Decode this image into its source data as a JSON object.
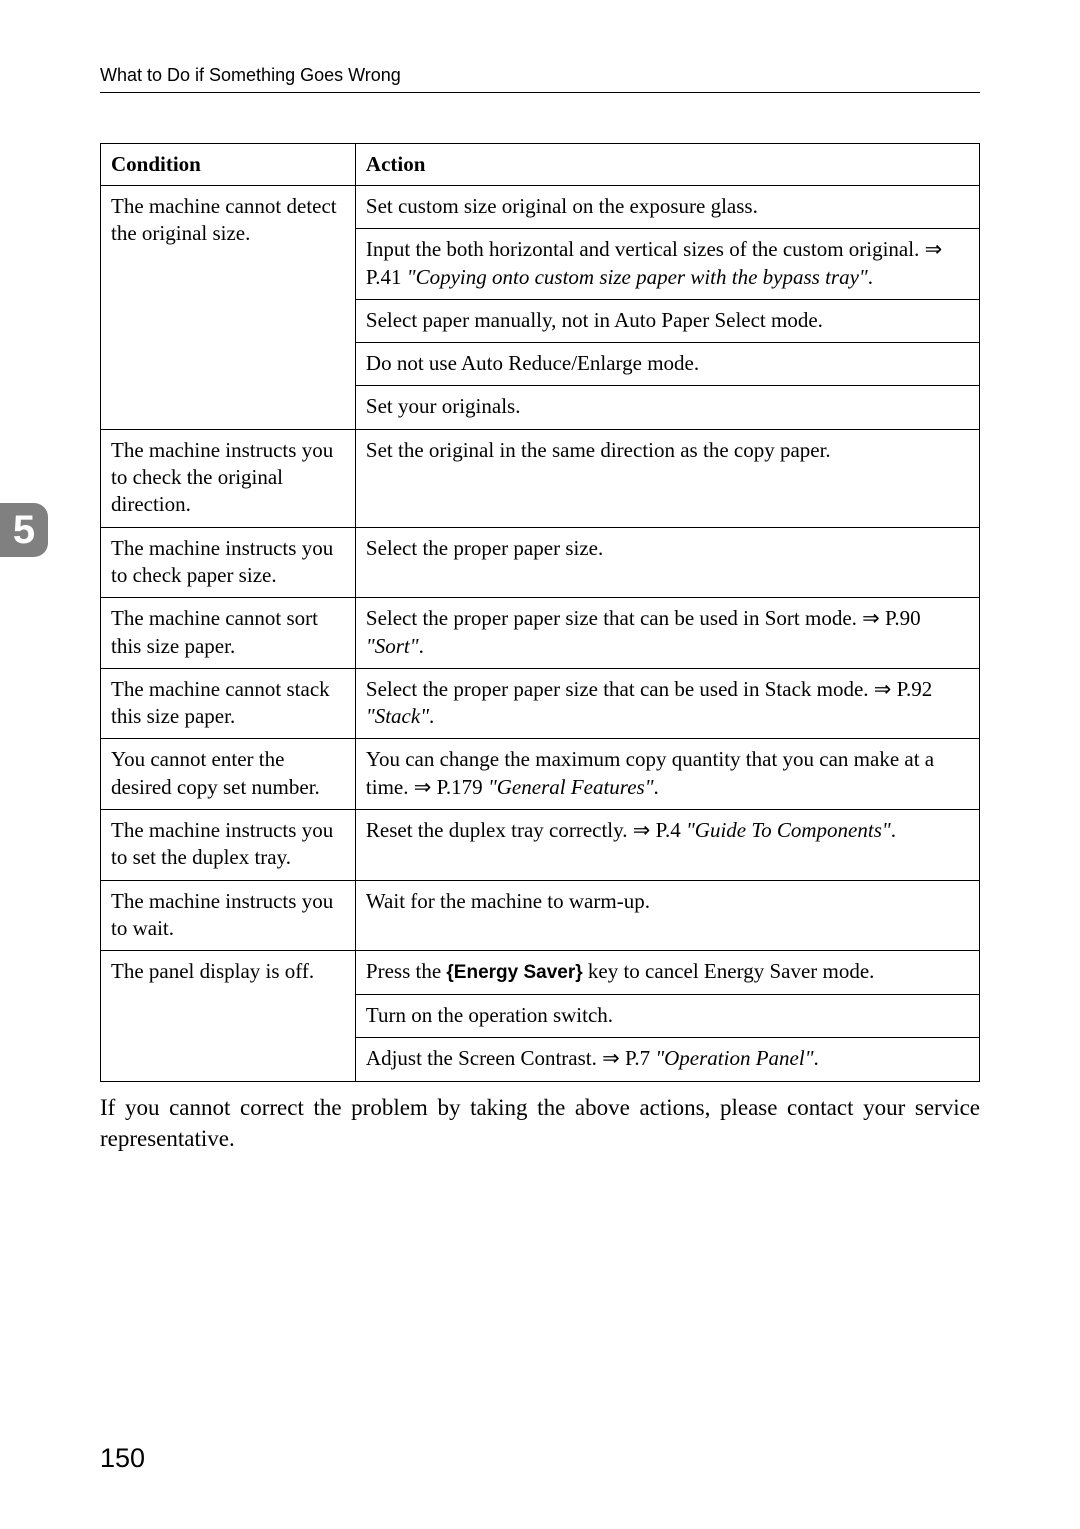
{
  "header": "What to Do if Something Goes Wrong",
  "chapter_tab": "5",
  "page_number": "150",
  "table": {
    "col_condition": "Condition",
    "col_action": "Action"
  },
  "r1": {
    "cond": "The machine cannot detect the original size."
  },
  "r1a1": "Set custom size original on the exposure glass.",
  "r1a2_pre": "Input the both horizontal and vertical sizes of the custom original. ⇒ P.41 ",
  "r1a2_ital": "\"Copying onto custom size paper with the bypass tray\"",
  "r1a2_post": ".",
  "r1a3": "Select paper manually, not in Auto Paper Select mode.",
  "r1a4": "Do not use Auto Reduce/Enlarge mode.",
  "r1a5": "Set your originals.",
  "r2": {
    "cond": "The machine instructs you to check the original direction.",
    "act": "Set the original in the same direction as the copy paper."
  },
  "r3": {
    "cond": "The machine instructs you to check paper size.",
    "act": "Select the proper paper size."
  },
  "r4": {
    "cond": "The machine cannot sort this size paper.",
    "pre": "Select the proper paper size that can be used in Sort mode. ⇒ P.90 ",
    "ital": "\"Sort\"",
    "post": "."
  },
  "r5": {
    "cond": "The machine cannot stack this size paper.",
    "pre": "Select the proper paper size that can be used in Stack mode. ⇒ P.92 ",
    "ital": "\"Stack\"",
    "post": "."
  },
  "r6": {
    "cond": "You cannot enter the desired copy set number.",
    "pre": "You can change the maximum copy quantity that you can make at a time. ⇒ P.179 ",
    "ital": "\"General Features\"",
    "post": "."
  },
  "r7": {
    "cond": "The machine instructs you to set the duplex tray.",
    "pre": "Reset the duplex tray correctly. ⇒ P.4 ",
    "ital": "\"Guide To Components\"",
    "post": "."
  },
  "r8": {
    "cond": "The machine instructs you to wait.",
    "act": "Wait for the machine to warm-up."
  },
  "r9": {
    "cond": "The panel display is off."
  },
  "r9a1_pre": "Press the ",
  "r9a1_key": "{Energy Saver}",
  "r9a1_post": " key to cancel Energy Saver mode.",
  "r9a2": "Turn on the operation switch.",
  "r9a3_pre": "Adjust the Screen Contrast. ⇒ P.7 ",
  "r9a3_ital": "\"Operation Panel\"",
  "r9a3_post": ".",
  "after": "If you cannot correct the problem by taking the above actions, please contact your service representative."
}
